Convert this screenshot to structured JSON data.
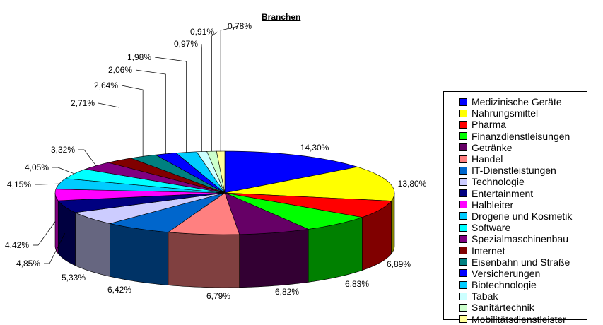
{
  "chart_data": {
    "type": "pie",
    "title": "Branchen",
    "legend_position": "right",
    "slices": [
      {
        "name": "Medizinische Geräte",
        "label": "14,30%",
        "value": 14.3,
        "color": "#0000ff"
      },
      {
        "name": "Nahrungsmittel",
        "label": "13,80%",
        "value": 13.8,
        "color": "#ffff00"
      },
      {
        "name": "Pharma",
        "label": "6,89%",
        "value": 6.89,
        "color": "#ff0000"
      },
      {
        "name": "Finanzdienstleisungen",
        "label": "6,83%",
        "value": 6.83,
        "color": "#00ff00"
      },
      {
        "name": "Getränke",
        "label": "6,82%",
        "value": 6.82,
        "color": "#660066"
      },
      {
        "name": "Handel",
        "label": "6,79%",
        "value": 6.79,
        "color": "#ff8080"
      },
      {
        "name": "IT-Dienstleistungen",
        "label": "6,42%",
        "value": 6.42,
        "color": "#0066cc"
      },
      {
        "name": "Technologie",
        "label": "5,33%",
        "value": 5.33,
        "color": "#ccccff"
      },
      {
        "name": "Entertainment",
        "label": "4,85%",
        "value": 4.85,
        "color": "#000080"
      },
      {
        "name": "Halbleiter",
        "label": "4,42%",
        "value": 4.42,
        "color": "#ff00ff"
      },
      {
        "name": "Drogerie und Kosmetik",
        "label": "4,15%",
        "value": 4.15,
        "color": "#00ccff"
      },
      {
        "name": "Software",
        "label": "4,05%",
        "value": 4.05,
        "color": "#00ffff"
      },
      {
        "name": "Spezialmaschinenbau",
        "label": "3,32%",
        "value": 3.32,
        "color": "#800080"
      },
      {
        "name": "Internet",
        "label": "2,71%",
        "value": 2.71,
        "color": "#800000"
      },
      {
        "name": "Eisenbahn und Straße",
        "label": "2,64%",
        "value": 2.64,
        "color": "#008080"
      },
      {
        "name": "Versicherungen",
        "label": "2,06%",
        "value": 2.06,
        "color": "#0000ff"
      },
      {
        "name": "Biotechnologie",
        "label": "1,98%",
        "value": 1.98,
        "color": "#00ccff"
      },
      {
        "name": "Tabak",
        "label": "0,97%",
        "value": 0.97,
        "color": "#ccffff"
      },
      {
        "name": "Sanitärtechnik",
        "label": "0,91%",
        "value": 0.91,
        "color": "#ccffcc"
      },
      {
        "name": "Mobilitätsdienstleister",
        "label": "0,78%",
        "value": 0.78,
        "color": "#ffff99"
      }
    ]
  }
}
